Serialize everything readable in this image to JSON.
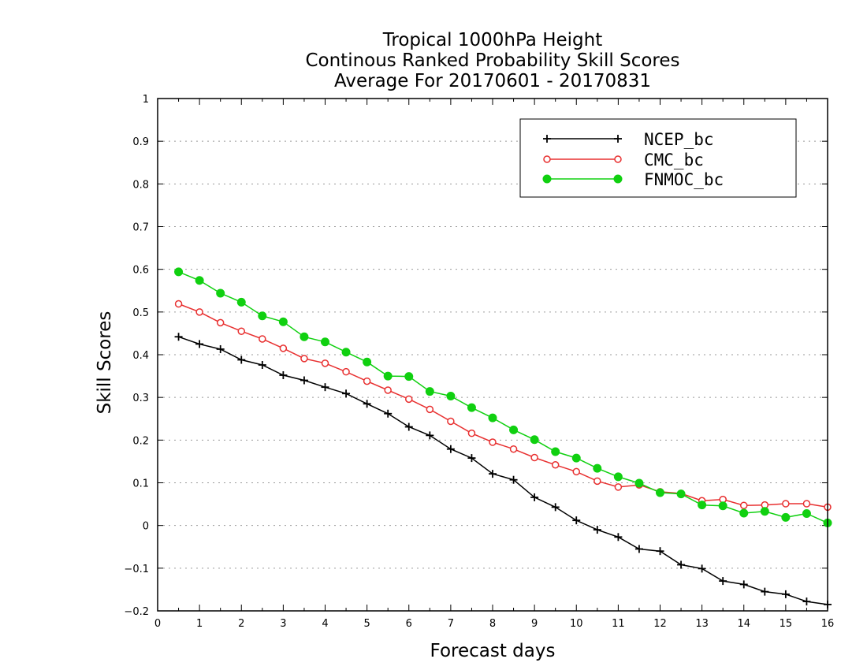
{
  "chart_data": {
    "type": "line",
    "title": [
      "Tropical 1000hPa Height",
      "Continous Ranked Probability Skill Scores",
      "Average For 20170601 - 20170831"
    ],
    "xlabel": "Forecast days",
    "ylabel": "Skill Scores",
    "xlim": [
      0,
      16
    ],
    "ylim": [
      -0.2,
      1
    ],
    "xticks": [
      "0",
      "1",
      "2",
      "3",
      "4",
      "5",
      "6",
      "7",
      "8",
      "9",
      "10",
      "11",
      "12",
      "13",
      "14",
      "15",
      "16"
    ],
    "yticks": [
      "−0.2",
      "−0.1",
      "0",
      "0.1",
      "0.2",
      "0.3",
      "0.4",
      "0.5",
      "0.6",
      "0.7",
      "0.8",
      "0.9",
      "1"
    ],
    "ytick_values": [
      -0.2,
      -0.1,
      0,
      0.1,
      0.2,
      0.3,
      0.4,
      0.5,
      0.6,
      0.7,
      0.8,
      0.9,
      1
    ],
    "grid": true,
    "legend_position": "top-right",
    "x": [
      0.5,
      1,
      1.5,
      2,
      2.5,
      3,
      3.5,
      4,
      4.5,
      5,
      5.5,
      6,
      6.5,
      7,
      7.5,
      8,
      8.5,
      9,
      9.5,
      10,
      10.5,
      11,
      11.5,
      12,
      12.5,
      13,
      13.5,
      14,
      14.5,
      15,
      15.5,
      16
    ],
    "series": [
      {
        "name": "NCEP_bc",
        "color": "#000000",
        "marker": "plus",
        "values": [
          0.442,
          0.425,
          0.413,
          0.388,
          0.376,
          0.352,
          0.34,
          0.324,
          0.309,
          0.285,
          0.262,
          0.231,
          0.211,
          0.179,
          0.158,
          0.121,
          0.107,
          0.066,
          0.043,
          0.012,
          -0.01,
          -0.027,
          -0.055,
          -0.06,
          -0.092,
          -0.101,
          -0.13,
          -0.138,
          -0.155,
          -0.161,
          -0.178,
          -0.185
        ]
      },
      {
        "name": "CMC_bc",
        "color": "#e83030",
        "marker": "open-circle",
        "values": [
          0.519,
          0.5,
          0.475,
          0.455,
          0.437,
          0.415,
          0.391,
          0.38,
          0.36,
          0.338,
          0.317,
          0.296,
          0.272,
          0.244,
          0.216,
          0.195,
          0.179,
          0.159,
          0.142,
          0.126,
          0.104,
          0.09,
          0.095,
          0.079,
          0.075,
          0.058,
          0.061,
          0.047,
          0.048,
          0.051,
          0.051,
          0.043
        ]
      },
      {
        "name": "FNMOC_bc",
        "color": "#10d010",
        "marker": "filled-circle",
        "values": [
          0.594,
          0.574,
          0.544,
          0.523,
          0.491,
          0.477,
          0.442,
          0.43,
          0.406,
          0.383,
          0.35,
          0.349,
          0.314,
          0.303,
          0.276,
          0.252,
          0.224,
          0.201,
          0.173,
          0.158,
          0.134,
          0.114,
          0.099,
          0.077,
          0.074,
          0.048,
          0.046,
          0.029,
          0.033,
          0.019,
          0.028,
          0.006
        ]
      }
    ]
  }
}
